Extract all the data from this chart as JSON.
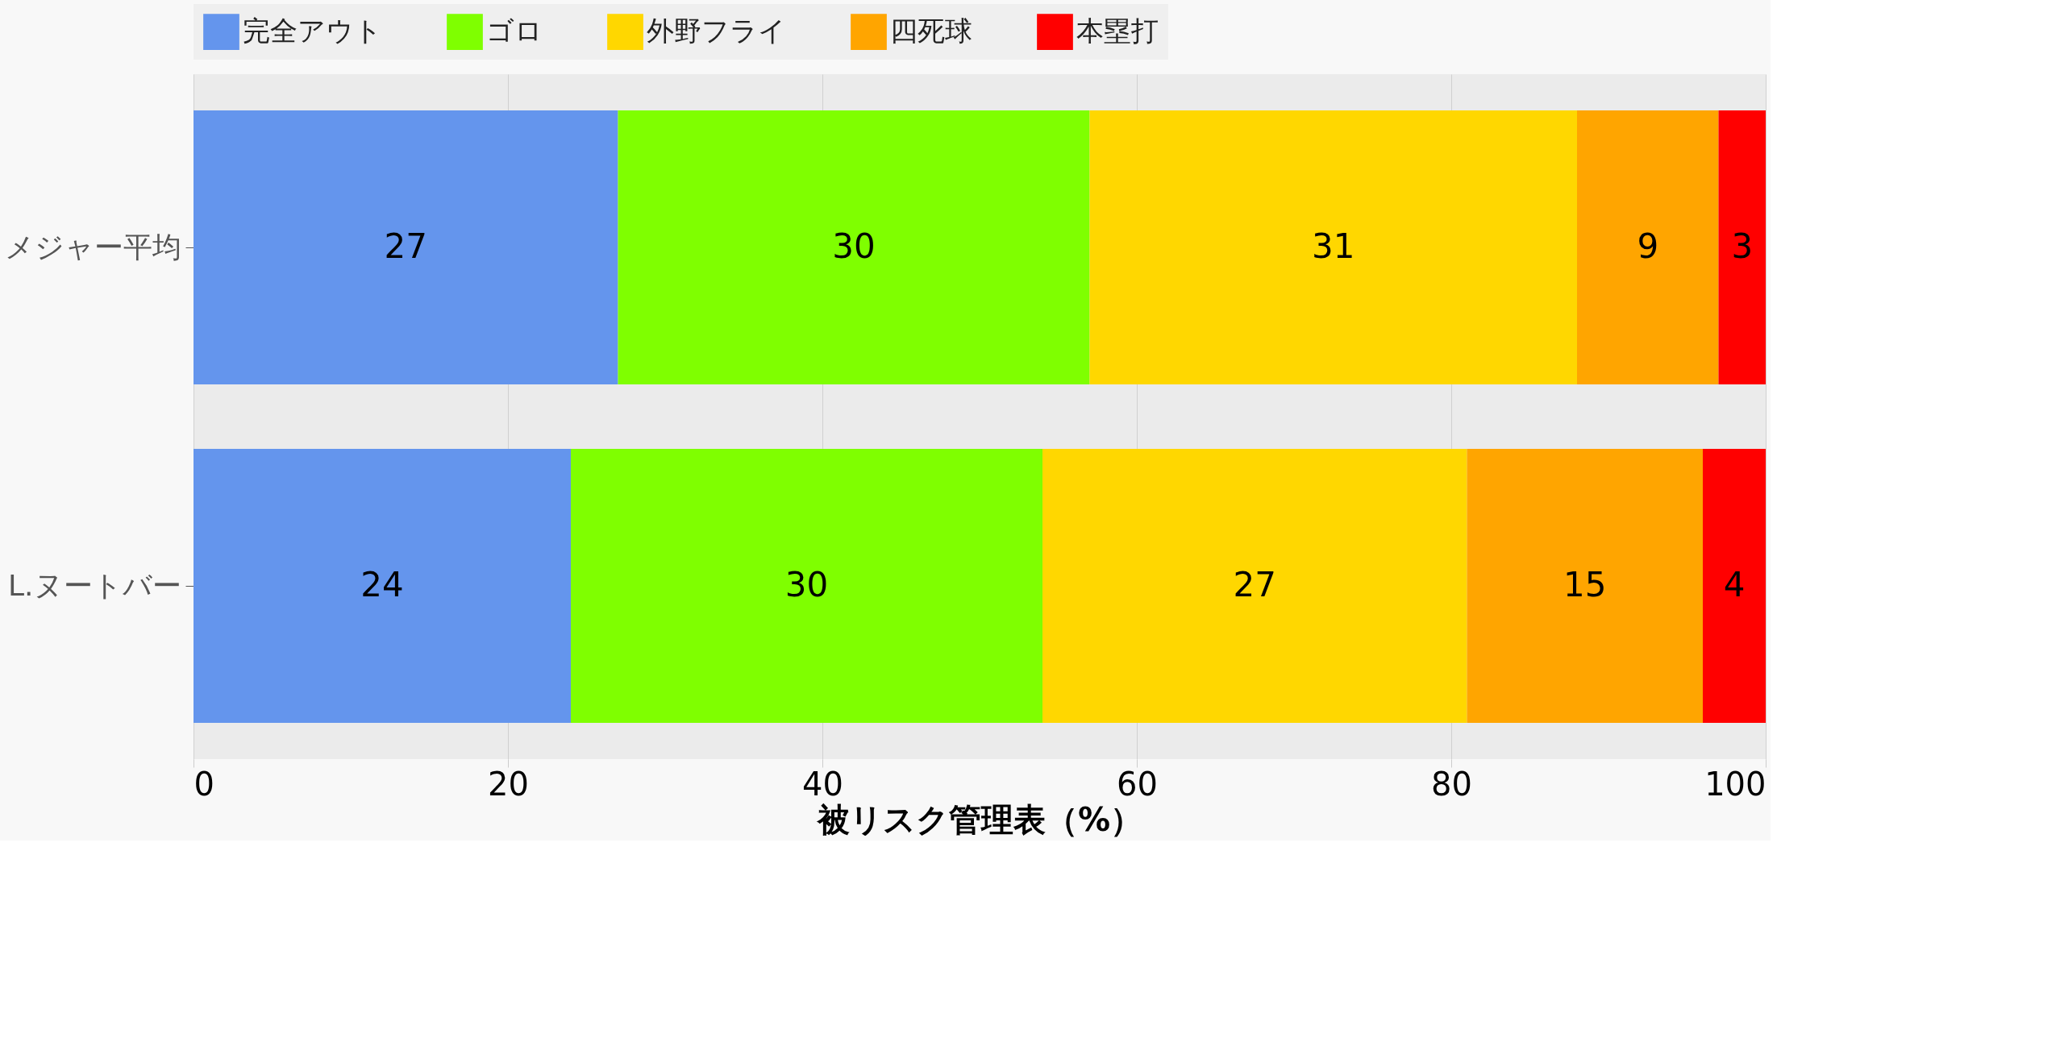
{
  "chart_data": {
    "type": "bar",
    "orientation": "horizontal",
    "stacked": true,
    "categories": [
      "メジャー平均",
      "L.ヌートバー"
    ],
    "series": [
      {
        "name": "完全アウト",
        "color": "#6495ed",
        "values": [
          27,
          24
        ]
      },
      {
        "name": "ゴロ",
        "color": "#7fff00",
        "values": [
          30,
          30
        ]
      },
      {
        "name": "外野フライ",
        "color": "#ffd700",
        "values": [
          31,
          27
        ]
      },
      {
        "name": "四死球",
        "color": "#ffa500",
        "values": [
          9,
          15
        ]
      },
      {
        "name": "本塁打",
        "color": "#ff0000",
        "values": [
          3,
          4
        ]
      }
    ],
    "xlim": [
      0,
      100
    ],
    "xticks": [
      0,
      20,
      40,
      60,
      80,
      100
    ],
    "xlabel": "被リスク管理表（%）",
    "grid": "x",
    "legend": "top",
    "data_labels": true
  }
}
